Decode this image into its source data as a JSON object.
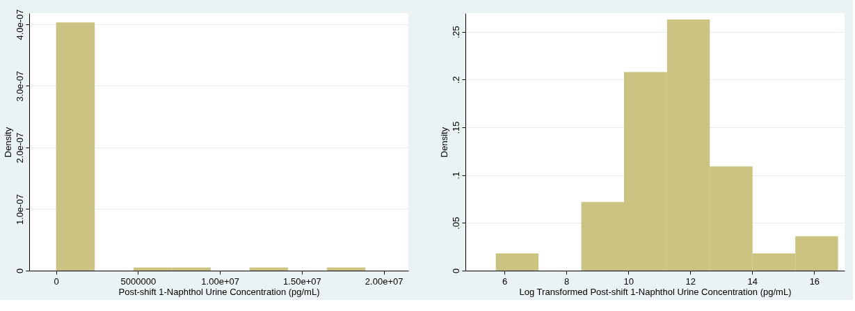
{
  "chart_data": [
    {
      "type": "histogram",
      "bins": [
        0,
        2360000,
        4720000,
        7080000,
        9440000,
        11800000,
        14160000,
        16520000,
        18880000
      ],
      "values": [
        4.03e-07,
        0,
        5e-09,
        5e-09,
        0,
        5e-09,
        0,
        5e-09
      ],
      "color": "#cbc382",
      "xlabel": "Post-shift 1-Naphthol Urine Concentration (pg/mL)",
      "ylabel": "Density",
      "xlim": [
        -1640000,
        21500000
      ],
      "ylim": [
        0,
        4.18e-07
      ],
      "xticks": [
        0,
        5000000,
        {
          "value": 10000000,
          "label": "1.00e+07"
        },
        {
          "value": 15000000,
          "label": "1.50e+07"
        },
        {
          "value": 20000000,
          "label": "2.00e+07"
        }
      ],
      "yticks": [
        0,
        {
          "value": 1e-07,
          "label": "1.0e-07"
        },
        {
          "value": 2e-07,
          "label": "2.0e-07"
        },
        {
          "value": 3e-07,
          "label": "3.0e-07"
        },
        {
          "value": 4e-07,
          "label": "4.0e-07"
        }
      ],
      "grid": "y"
    },
    {
      "type": "histogram",
      "bins": [
        5.72,
        7.1,
        8.48,
        9.86,
        11.25,
        12.63,
        14.01,
        15.39,
        16.77
      ],
      "values": [
        0.018,
        0,
        0.072,
        0.208,
        0.263,
        0.109,
        0.018,
        0.036
      ],
      "color": "#cbc382",
      "xlabel": "Log Transformed Post-shift 1-Naphthol Urine Concentration (pg/mL)",
      "ylabel": "Density",
      "xlim": [
        4.74,
        16.98
      ],
      "ylim": [
        0,
        0.2695
      ],
      "xticks": [
        6,
        8,
        10,
        12,
        14,
        16
      ],
      "yticks": [
        0,
        {
          "value": 0.05,
          "label": ".05"
        },
        {
          "value": 0.1,
          "label": ".1"
        },
        {
          "value": 0.15,
          "label": ".15"
        },
        {
          "value": 0.2,
          "label": ".2"
        },
        {
          "value": 0.25,
          "label": ".25"
        }
      ],
      "grid": "y"
    }
  ]
}
